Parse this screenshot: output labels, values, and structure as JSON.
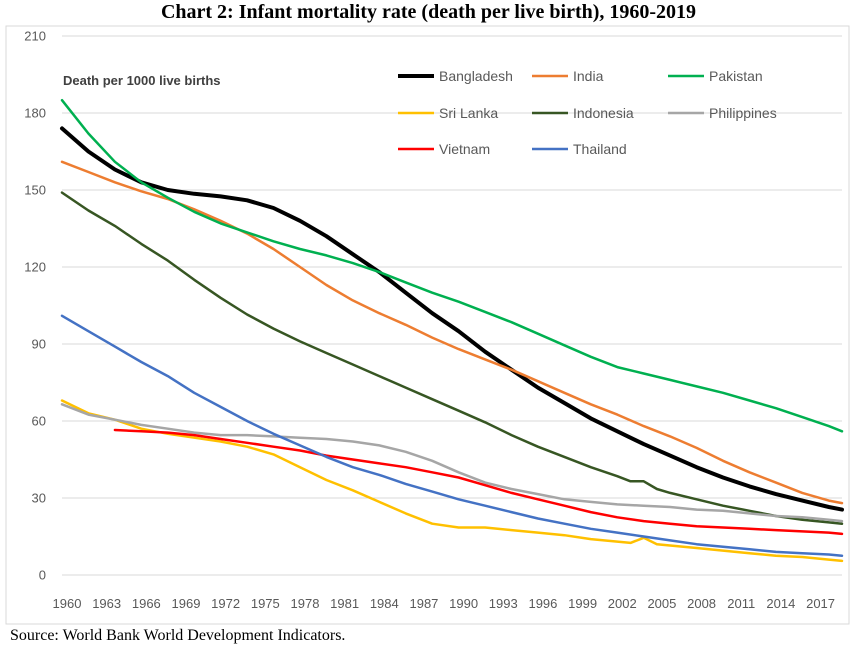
{
  "title": "Chart 2: Infant mortality rate (death per live birth), 1960-2019",
  "source": "Source: World Bank World Development Indicators.",
  "chart_data": {
    "type": "line",
    "ylabel": "Death per 1000 live births",
    "ylim": [
      0,
      210
    ],
    "y_ticks": [
      0,
      30,
      60,
      90,
      120,
      150,
      180,
      210
    ],
    "x_ticks": [
      1960,
      1963,
      1966,
      1969,
      1972,
      1975,
      1978,
      1981,
      1984,
      1987,
      1990,
      1993,
      1996,
      1999,
      2002,
      2005,
      2008,
      2011,
      2014,
      2017
    ],
    "xlim": [
      1960,
      2019
    ],
    "grid": true,
    "legend": "top-right",
    "series": [
      {
        "name": "Bangladesh",
        "color": "#000000",
        "width": 4,
        "x": [
          1960,
          1962,
          1964,
          1966,
          1968,
          1970,
          1972,
          1974,
          1976,
          1978,
          1980,
          1982,
          1984,
          1986,
          1988,
          1990,
          1992,
          1994,
          1996,
          1998,
          2000,
          2002,
          2004,
          2006,
          2008,
          2010,
          2012,
          2014,
          2016,
          2018,
          2019
        ],
        "y": [
          174,
          165,
          158,
          153,
          150,
          148.5,
          147.5,
          146,
          143,
          138,
          132,
          125,
          118,
          110,
          102,
          95,
          87,
          80,
          73,
          67,
          61,
          56,
          51,
          46.5,
          42,
          38,
          34.5,
          31.5,
          29,
          26.5,
          25.5
        ]
      },
      {
        "name": "India",
        "color": "#ED7D31",
        "width": 2.5,
        "x": [
          1960,
          1962,
          1964,
          1966,
          1968,
          1970,
          1972,
          1974,
          1976,
          1978,
          1980,
          1982,
          1984,
          1986,
          1988,
          1990,
          1992,
          1994,
          1996,
          1998,
          2000,
          2002,
          2004,
          2006,
          2008,
          2010,
          2012,
          2014,
          2016,
          2018,
          2019
        ],
        "y": [
          161,
          157,
          153,
          149.5,
          146.5,
          142.5,
          138,
          133,
          127,
          120,
          113,
          107,
          102,
          97.5,
          92.5,
          88,
          84,
          80,
          75.5,
          71,
          66.5,
          62.5,
          58,
          54,
          49.5,
          44.5,
          40,
          36,
          32,
          29,
          28
        ]
      },
      {
        "name": "Pakistan",
        "color": "#00B050",
        "width": 2.5,
        "x": [
          1960,
          1962,
          1964,
          1966,
          1968,
          1970,
          1972,
          1974,
          1976,
          1978,
          1980,
          1982,
          1984,
          1986,
          1988,
          1990,
          1992,
          1994,
          1996,
          1998,
          2000,
          2002,
          2004,
          2006,
          2008,
          2010,
          2012,
          2014,
          2016,
          2018,
          2019
        ],
        "y": [
          185,
          172,
          161,
          153,
          147,
          141.5,
          137,
          133.5,
          130,
          127,
          124.5,
          121.5,
          118,
          114,
          110,
          106.5,
          102.5,
          98.5,
          94,
          89.5,
          85,
          81,
          78.5,
          76,
          73.5,
          71,
          68,
          65,
          61.5,
          58,
          56
        ]
      },
      {
        "name": "Sri Lanka",
        "color": "#FFC000",
        "width": 2.5,
        "x": [
          1960,
          1962,
          1964,
          1966,
          1968,
          1970,
          1972,
          1974,
          1976,
          1978,
          1980,
          1982,
          1984,
          1986,
          1988,
          1990,
          1992,
          1994,
          1996,
          1998,
          2000,
          2002,
          2003,
          2004,
          2005,
          2006,
          2008,
          2010,
          2012,
          2014,
          2016,
          2018,
          2019
        ],
        "y": [
          68,
          63,
          60.5,
          57,
          55,
          53.5,
          52,
          50,
          47,
          42,
          37,
          33,
          28.5,
          24,
          20,
          18.5,
          18.5,
          17.5,
          16.5,
          15.5,
          14,
          13,
          12.5,
          14.5,
          12,
          11.5,
          10.5,
          9.5,
          8.5,
          7.5,
          7,
          6,
          5.5
        ]
      },
      {
        "name": "Indonesia",
        "color": "#375623",
        "width": 2.5,
        "x": [
          1960,
          1962,
          1964,
          1966,
          1968,
          1970,
          1972,
          1974,
          1976,
          1978,
          1980,
          1982,
          1984,
          1986,
          1988,
          1990,
          1992,
          1994,
          1996,
          1998,
          2000,
          2002,
          2003,
          2004,
          2005,
          2006,
          2008,
          2010,
          2012,
          2014,
          2016,
          2018,
          2019
        ],
        "y": [
          149,
          142,
          136,
          129,
          122.5,
          115,
          108,
          101.5,
          96,
          91,
          86.5,
          82,
          77.5,
          73,
          68.5,
          64,
          59.5,
          54.5,
          50,
          46,
          42,
          38.5,
          36.5,
          36.5,
          33.5,
          32,
          29.5,
          27,
          25,
          23,
          21.5,
          20.5,
          20
        ]
      },
      {
        "name": "Philippines",
        "color": "#A6A6A6",
        "width": 2.5,
        "x": [
          1960,
          1962,
          1964,
          1966,
          1968,
          1970,
          1972,
          1974,
          1976,
          1978,
          1980,
          1982,
          1984,
          1986,
          1988,
          1990,
          1992,
          1994,
          1996,
          1998,
          2000,
          2002,
          2004,
          2006,
          2008,
          2010,
          2012,
          2014,
          2016,
          2018,
          2019
        ],
        "y": [
          66.5,
          62.5,
          60.5,
          58.5,
          57,
          55.5,
          54.5,
          54.5,
          54,
          53.5,
          53,
          52,
          50.5,
          48,
          44.5,
          40,
          36,
          33.5,
          31.5,
          29.5,
          28.5,
          27.5,
          27,
          26.5,
          25.5,
          25,
          24,
          23,
          22.5,
          21.5,
          21
        ]
      },
      {
        "name": "Vietnam",
        "color": "#FF0000",
        "width": 2.5,
        "x": [
          1964,
          1966,
          1968,
          1970,
          1972,
          1974,
          1976,
          1978,
          1980,
          1982,
          1984,
          1986,
          1988,
          1990,
          1992,
          1994,
          1996,
          1998,
          2000,
          2002,
          2004,
          2006,
          2008,
          2010,
          2012,
          2014,
          2016,
          2018,
          2019
        ],
        "y": [
          56.5,
          56,
          55.5,
          54.5,
          53,
          51.5,
          50,
          48.5,
          46.5,
          45,
          43.5,
          42,
          40,
          38,
          35,
          32,
          29.5,
          27,
          24.5,
          22.5,
          21,
          20,
          19,
          18.5,
          18,
          17.5,
          17,
          16.5,
          16
        ]
      },
      {
        "name": "Thailand",
        "color": "#4472C4",
        "width": 2.5,
        "x": [
          1960,
          1962,
          1964,
          1966,
          1968,
          1970,
          1972,
          1974,
          1976,
          1978,
          1980,
          1982,
          1984,
          1986,
          1988,
          1990,
          1992,
          1994,
          1996,
          1998,
          2000,
          2002,
          2004,
          2006,
          2008,
          2010,
          2012,
          2014,
          2016,
          2018,
          2019
        ],
        "y": [
          101,
          95,
          89,
          83,
          77.5,
          71,
          65.5,
          60,
          55,
          50.5,
          46,
          42,
          39,
          35.5,
          32.5,
          29.5,
          27,
          24.5,
          22,
          20,
          18,
          16.5,
          15,
          13.5,
          12,
          11,
          10,
          9,
          8.5,
          8,
          7.5
        ]
      }
    ]
  }
}
